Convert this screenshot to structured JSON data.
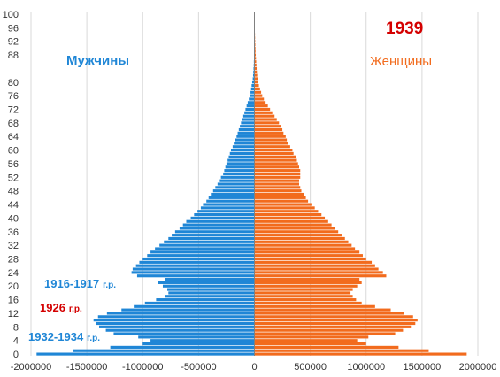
{
  "chart_data": {
    "type": "bar",
    "orientation": "horizontal",
    "title": "1939",
    "legend": [
      {
        "name": "Мужчины",
        "color": "#1f86d6"
      },
      {
        "name": "Женщины",
        "color": "#f26b1d"
      }
    ],
    "annotations": [
      {
        "text": "1916-1917",
        "suffix": "г.р.",
        "color": "#1f86d6"
      },
      {
        "text": "1926",
        "suffix": "г.р.",
        "color": "#d40000"
      },
      {
        "text": "1932-1934",
        "suffix": "г.р.",
        "color": "#1f86d6"
      }
    ],
    "xlim": [
      -2000000,
      2000000
    ],
    "x_ticks": [
      -2000000,
      -1500000,
      -1000000,
      -500000,
      0,
      500000,
      1000000,
      1500000,
      2000000
    ],
    "y_ticks": [
      0,
      4,
      8,
      12,
      16,
      20,
      24,
      28,
      32,
      36,
      40,
      44,
      48,
      52,
      56,
      60,
      64,
      68,
      72,
      76,
      80,
      88,
      92,
      96,
      100
    ],
    "grid": true,
    "ages": [
      0,
      1,
      2,
      3,
      4,
      5,
      6,
      7,
      8,
      9,
      10,
      11,
      12,
      13,
      14,
      15,
      16,
      17,
      18,
      19,
      20,
      21,
      22,
      23,
      24,
      25,
      26,
      27,
      28,
      29,
      30,
      31,
      32,
      33,
      34,
      35,
      36,
      37,
      38,
      39,
      40,
      41,
      42,
      43,
      44,
      45,
      46,
      47,
      48,
      49,
      50,
      51,
      52,
      53,
      54,
      55,
      56,
      57,
      58,
      59,
      60,
      61,
      62,
      63,
      64,
      65,
      66,
      67,
      68,
      69,
      70,
      71,
      72,
      73,
      74,
      75,
      76,
      77,
      78,
      79,
      80,
      81,
      82,
      83,
      84,
      85,
      86,
      87,
      88,
      89,
      90,
      91,
      92,
      93,
      94,
      95,
      96,
      97,
      98,
      99,
      100
    ],
    "series": [
      {
        "name": "Мужчины",
        "color": "#1f86d6",
        "values": [
          -1950000,
          -1620000,
          -1290000,
          -1000000,
          -930000,
          -1040000,
          -1260000,
          -1330000,
          -1390000,
          -1420000,
          -1440000,
          -1400000,
          -1320000,
          -1190000,
          -1080000,
          -980000,
          -880000,
          -800000,
          -770000,
          -780000,
          -820000,
          -860000,
          -800000,
          -1050000,
          -1100000,
          -1090000,
          -1060000,
          -1030000,
          -1000000,
          -960000,
          -930000,
          -890000,
          -850000,
          -810000,
          -770000,
          -740000,
          -710000,
          -670000,
          -640000,
          -610000,
          -570000,
          -540000,
          -510000,
          -480000,
          -460000,
          -430000,
          -410000,
          -390000,
          -370000,
          -350000,
          -330000,
          -310000,
          -300000,
          -280000,
          -270000,
          -260000,
          -250000,
          -240000,
          -230000,
          -220000,
          -210000,
          -195000,
          -185000,
          -175000,
          -160000,
          -150000,
          -140000,
          -130000,
          -120000,
          -110000,
          -100000,
          -90000,
          -80000,
          -70000,
          -60000,
          -50000,
          -40000,
          -35000,
          -30000,
          -25000,
          -20000,
          -15000,
          -12000,
          -10000,
          -8000,
          -6000,
          -5000,
          -4000,
          -3500,
          -3000,
          -2500,
          -2000,
          -1500,
          -1200,
          -1000,
          -800,
          -600,
          -500,
          -400,
          -300,
          -200
        ]
      },
      {
        "name": "Женщины",
        "color": "#f26b1d",
        "values": [
          1900000,
          1560000,
          1290000,
          1000000,
          920000,
          1020000,
          1260000,
          1330000,
          1400000,
          1440000,
          1460000,
          1420000,
          1340000,
          1220000,
          1080000,
          960000,
          910000,
          880000,
          860000,
          880000,
          920000,
          960000,
          940000,
          1180000,
          1150000,
          1110000,
          1080000,
          1050000,
          1000000,
          970000,
          940000,
          900000,
          870000,
          840000,
          810000,
          780000,
          750000,
          720000,
          690000,
          660000,
          630000,
          600000,
          570000,
          540000,
          510000,
          480000,
          460000,
          440000,
          420000,
          410000,
          400000,
          400000,
          410000,
          410000,
          410000,
          400000,
          390000,
          380000,
          370000,
          350000,
          340000,
          320000,
          300000,
          290000,
          280000,
          260000,
          250000,
          240000,
          220000,
          200000,
          180000,
          160000,
          140000,
          120000,
          100000,
          85000,
          70000,
          60000,
          50000,
          40000,
          35000,
          30000,
          25000,
          22000,
          20000,
          18000,
          16000,
          14000,
          12000,
          10000,
          9000,
          8000,
          7000,
          6000,
          5000,
          4000,
          3000,
          2500,
          2000,
          1500,
          1000
        ]
      }
    ]
  }
}
